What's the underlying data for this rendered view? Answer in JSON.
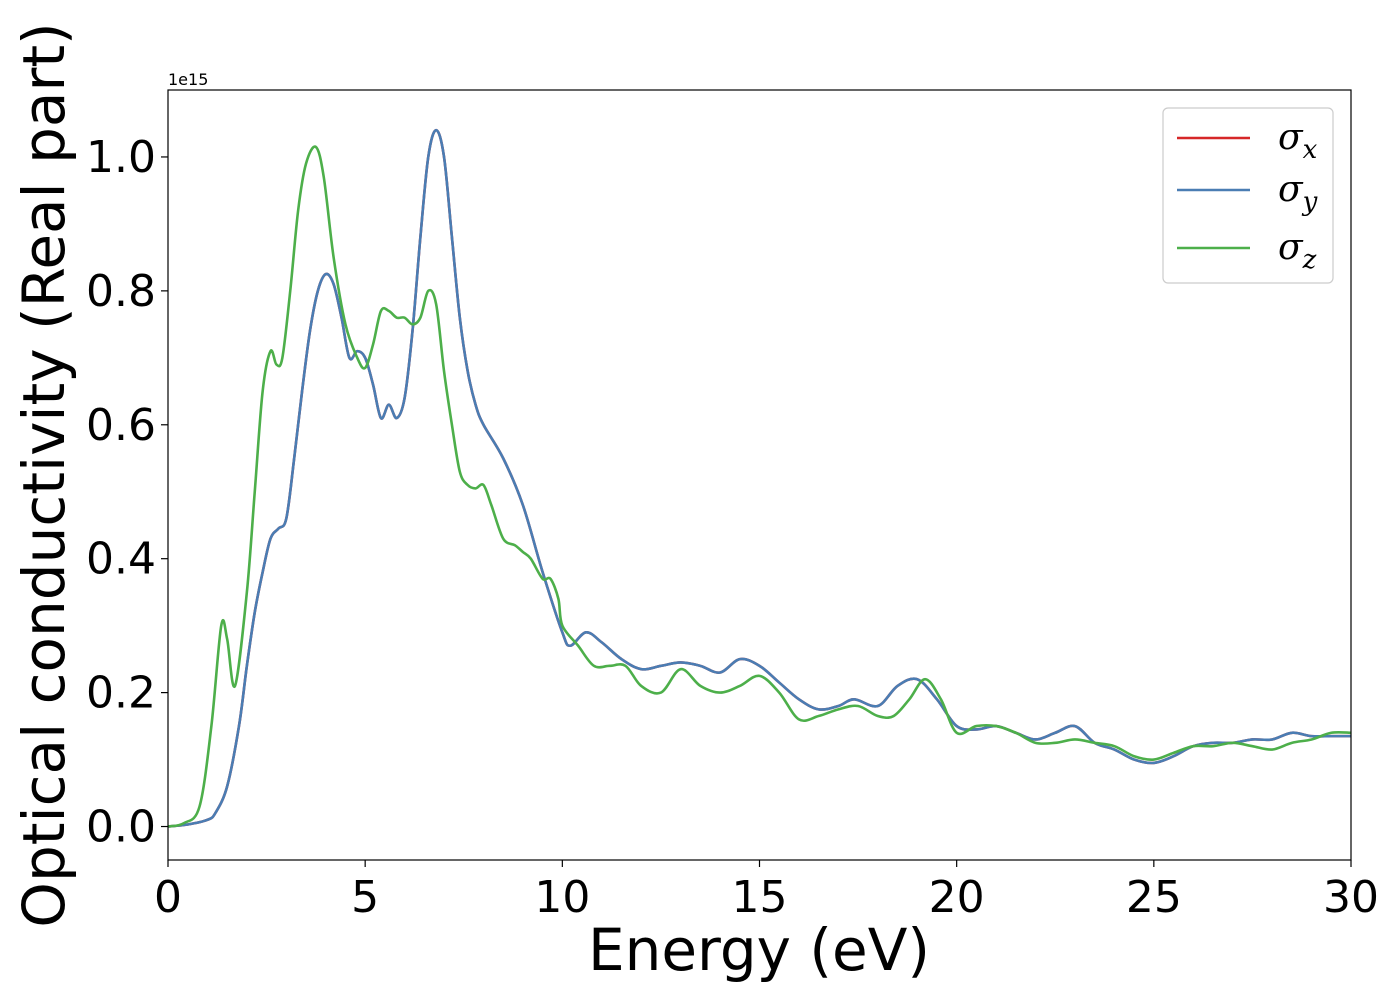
{
  "chart_data": {
    "type": "line",
    "xlabel": "Energy (eV)",
    "ylabel": "Optical conductivity (Real part)",
    "y_offset_label": "1e15",
    "xlim": [
      0,
      30
    ],
    "ylim": [
      -0.05,
      1.1
    ],
    "x_ticks": [
      0,
      5,
      10,
      15,
      20,
      25,
      30
    ],
    "x_tick_labels": [
      "0",
      "5",
      "10",
      "15",
      "20",
      "25",
      "30"
    ],
    "y_ticks": [
      0.0,
      0.2,
      0.4,
      0.6,
      0.8,
      1.0
    ],
    "y_tick_labels": [
      "0.0",
      "0.2",
      "0.4",
      "0.6",
      "0.8",
      "1.0"
    ],
    "grid": false,
    "legend_position": "top-right",
    "series": [
      {
        "name": "σ",
        "subscript": "x",
        "color": "#d62728",
        "x": [
          0,
          0.5,
          1.0,
          1.2,
          1.5,
          1.8,
          2.0,
          2.2,
          2.4,
          2.6,
          2.8,
          3.0,
          3.2,
          3.4,
          3.6,
          3.8,
          4.0,
          4.2,
          4.4,
          4.6,
          4.8,
          5.0,
          5.2,
          5.4,
          5.6,
          5.8,
          6.0,
          6.2,
          6.4,
          6.6,
          6.8,
          7.0,
          7.2,
          7.4,
          7.6,
          7.8,
          8.0,
          8.5,
          9.0,
          9.5,
          10.0,
          10.2,
          10.6,
          11.0,
          11.5,
          12.0,
          12.5,
          13.0,
          13.5,
          14.0,
          14.5,
          15.0,
          15.5,
          16.0,
          16.5,
          17.0,
          17.4,
          18.0,
          18.5,
          19.0,
          19.5,
          20.0,
          20.5,
          21.0,
          21.5,
          22.0,
          22.5,
          23.0,
          23.5,
          24.0,
          24.5,
          25.0,
          25.5,
          26.0,
          26.5,
          27.0,
          27.5,
          28.0,
          28.5,
          29.0,
          29.5,
          30.0
        ],
        "values": [
          0.0,
          0.003,
          0.01,
          0.02,
          0.06,
          0.15,
          0.24,
          0.32,
          0.38,
          0.43,
          0.445,
          0.46,
          0.55,
          0.65,
          0.74,
          0.8,
          0.825,
          0.81,
          0.76,
          0.7,
          0.71,
          0.7,
          0.66,
          0.61,
          0.63,
          0.61,
          0.64,
          0.74,
          0.88,
          1.0,
          1.04,
          1.0,
          0.88,
          0.76,
          0.68,
          0.63,
          0.6,
          0.55,
          0.48,
          0.38,
          0.29,
          0.27,
          0.29,
          0.275,
          0.25,
          0.235,
          0.24,
          0.245,
          0.24,
          0.23,
          0.25,
          0.24,
          0.215,
          0.19,
          0.175,
          0.18,
          0.19,
          0.18,
          0.21,
          0.22,
          0.19,
          0.15,
          0.145,
          0.15,
          0.14,
          0.13,
          0.14,
          0.15,
          0.125,
          0.115,
          0.1,
          0.095,
          0.105,
          0.12,
          0.125,
          0.125,
          0.13,
          0.13,
          0.14,
          0.135,
          0.135,
          0.135
        ]
      },
      {
        "name": "σ",
        "subscript": "y",
        "color": "#4a7db3",
        "x": [
          0,
          0.5,
          1.0,
          1.2,
          1.5,
          1.8,
          2.0,
          2.2,
          2.4,
          2.6,
          2.8,
          3.0,
          3.2,
          3.4,
          3.6,
          3.8,
          4.0,
          4.2,
          4.4,
          4.6,
          4.8,
          5.0,
          5.2,
          5.4,
          5.6,
          5.8,
          6.0,
          6.2,
          6.4,
          6.6,
          6.8,
          7.0,
          7.2,
          7.4,
          7.6,
          7.8,
          8.0,
          8.5,
          9.0,
          9.5,
          10.0,
          10.2,
          10.6,
          11.0,
          11.5,
          12.0,
          12.5,
          13.0,
          13.5,
          14.0,
          14.5,
          15.0,
          15.5,
          16.0,
          16.5,
          17.0,
          17.4,
          18.0,
          18.5,
          19.0,
          19.5,
          20.0,
          20.5,
          21.0,
          21.5,
          22.0,
          22.5,
          23.0,
          23.5,
          24.0,
          24.5,
          25.0,
          25.5,
          26.0,
          26.5,
          27.0,
          27.5,
          28.0,
          28.5,
          29.0,
          29.5,
          30.0
        ],
        "values": [
          0.0,
          0.003,
          0.01,
          0.02,
          0.06,
          0.15,
          0.24,
          0.32,
          0.38,
          0.43,
          0.445,
          0.46,
          0.55,
          0.65,
          0.74,
          0.8,
          0.825,
          0.81,
          0.76,
          0.7,
          0.71,
          0.7,
          0.66,
          0.61,
          0.63,
          0.61,
          0.64,
          0.74,
          0.88,
          1.0,
          1.04,
          1.0,
          0.88,
          0.76,
          0.68,
          0.63,
          0.6,
          0.55,
          0.48,
          0.38,
          0.29,
          0.27,
          0.29,
          0.275,
          0.25,
          0.235,
          0.24,
          0.245,
          0.24,
          0.23,
          0.25,
          0.24,
          0.215,
          0.19,
          0.175,
          0.18,
          0.19,
          0.18,
          0.21,
          0.22,
          0.19,
          0.15,
          0.145,
          0.15,
          0.14,
          0.13,
          0.14,
          0.15,
          0.125,
          0.115,
          0.1,
          0.095,
          0.105,
          0.12,
          0.125,
          0.125,
          0.13,
          0.13,
          0.14,
          0.135,
          0.135,
          0.135
        ]
      },
      {
        "name": "σ",
        "subscript": "z",
        "color": "#4daf4a",
        "x": [
          0,
          0.4,
          0.8,
          1.1,
          1.35,
          1.5,
          1.7,
          2.0,
          2.2,
          2.4,
          2.6,
          2.75,
          2.9,
          3.1,
          3.3,
          3.5,
          3.75,
          3.95,
          4.2,
          4.5,
          4.8,
          5.0,
          5.2,
          5.4,
          5.6,
          5.8,
          6.0,
          6.2,
          6.4,
          6.6,
          6.8,
          7.0,
          7.2,
          7.4,
          7.6,
          7.8,
          8.0,
          8.2,
          8.5,
          8.8,
          9.0,
          9.2,
          9.5,
          9.7,
          9.9,
          10.0,
          10.4,
          10.8,
          11.2,
          11.6,
          12.0,
          12.5,
          13.0,
          13.5,
          14.0,
          14.5,
          15.0,
          15.5,
          16.0,
          16.5,
          17.0,
          17.5,
          18.0,
          18.4,
          18.8,
          19.2,
          19.6,
          20.0,
          20.5,
          21.0,
          21.5,
          22.0,
          22.5,
          23.0,
          23.5,
          24.0,
          24.5,
          25.0,
          25.5,
          26.0,
          26.5,
          27.0,
          27.5,
          28.0,
          28.5,
          29.0,
          29.5,
          30.0
        ],
        "values": [
          0.0,
          0.005,
          0.03,
          0.15,
          0.3,
          0.28,
          0.21,
          0.35,
          0.5,
          0.65,
          0.71,
          0.69,
          0.7,
          0.8,
          0.92,
          0.99,
          1.015,
          0.97,
          0.85,
          0.75,
          0.7,
          0.685,
          0.72,
          0.77,
          0.77,
          0.76,
          0.76,
          0.75,
          0.76,
          0.8,
          0.78,
          0.68,
          0.6,
          0.53,
          0.51,
          0.505,
          0.51,
          0.48,
          0.43,
          0.42,
          0.41,
          0.4,
          0.37,
          0.37,
          0.34,
          0.3,
          0.27,
          0.24,
          0.24,
          0.24,
          0.21,
          0.2,
          0.235,
          0.21,
          0.2,
          0.21,
          0.225,
          0.2,
          0.16,
          0.165,
          0.175,
          0.18,
          0.165,
          0.165,
          0.19,
          0.22,
          0.19,
          0.14,
          0.15,
          0.15,
          0.14,
          0.125,
          0.125,
          0.13,
          0.125,
          0.12,
          0.105,
          0.1,
          0.11,
          0.12,
          0.12,
          0.125,
          0.12,
          0.115,
          0.125,
          0.13,
          0.14,
          0.14
        ]
      }
    ]
  }
}
